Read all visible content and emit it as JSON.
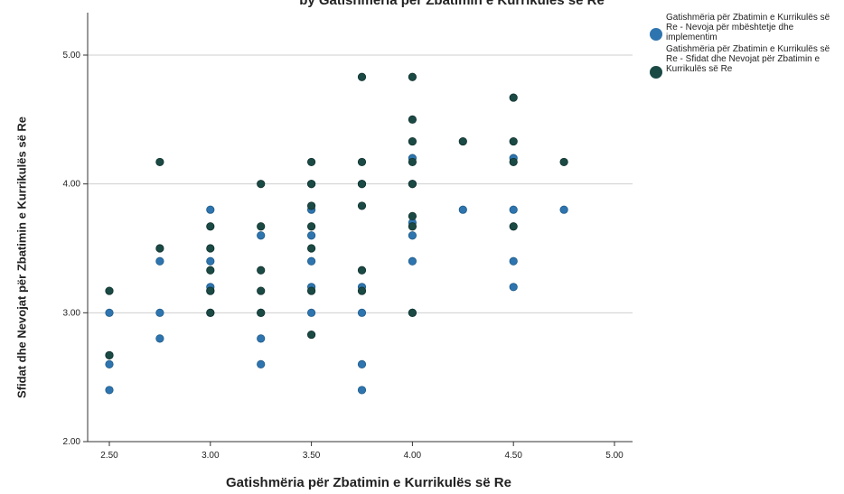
{
  "chart_data": {
    "type": "scatter",
    "title": "by Gatishmëria për Zbatimin e Kurrikulës së Re",
    "xlabel": "Gatishmëria për Zbatimin e Kurrikulës së Re",
    "ylabel": "Sfidat dhe Nevojat për Zbatimin e Kurrikulës së Re",
    "xlim": [
      2.5,
      5.0
    ],
    "ylim": [
      2.0,
      5.0
    ],
    "x_ticks": [
      "2.50",
      "3.00",
      "3.50",
      "4.00",
      "4.50",
      "5.00"
    ],
    "y_ticks": [
      "2.00",
      "3.00",
      "4.00",
      "5.00"
    ],
    "grid": "horizontal",
    "legend_position": "right",
    "series": [
      {
        "name": "Gatishmëria për Zbatimin e Kurrikulës së Re - Nevoja për mbështetje dhe implementim",
        "color": "#2e75b0",
        "x": [
          2.5,
          2.5,
          2.5,
          2.5,
          2.75,
          2.75,
          2.75,
          3.0,
          3.0,
          3.0,
          3.0,
          3.0,
          3.25,
          3.25,
          3.25,
          3.25,
          3.5,
          3.5,
          3.5,
          3.5,
          3.5,
          3.5,
          3.75,
          3.75,
          3.75,
          3.75,
          3.75,
          4.0,
          4.0,
          4.0,
          4.0,
          4.0,
          4.0,
          4.25,
          4.5,
          4.5,
          4.5,
          4.5,
          4.75
        ],
        "y": [
          3.0,
          2.6,
          2.4,
          2.67,
          3.4,
          3.0,
          2.8,
          3.8,
          3.4,
          3.2,
          3.0,
          3.17,
          3.6,
          3.0,
          2.8,
          2.6,
          4.0,
          3.8,
          3.6,
          3.4,
          3.0,
          3.2,
          3.2,
          3.0,
          2.6,
          2.4,
          4.0,
          4.2,
          4.0,
          3.6,
          3.4,
          3.0,
          3.7,
          3.8,
          4.2,
          3.8,
          3.4,
          3.2,
          3.8
        ]
      },
      {
        "name": "Gatishmëria për Zbatimin e Kurrikulës së Re - Sfidat dhe Nevojat për Zbatimin e Kurrikulës së Re",
        "color": "#1b4a45",
        "x": [
          2.5,
          2.5,
          2.75,
          2.75,
          3.0,
          3.0,
          3.0,
          3.0,
          3.0,
          3.25,
          3.25,
          3.25,
          3.25,
          3.25,
          3.5,
          3.5,
          3.5,
          3.5,
          3.5,
          3.5,
          3.5,
          3.75,
          3.75,
          3.75,
          3.75,
          3.75,
          3.75,
          4.0,
          4.0,
          4.0,
          4.0,
          4.0,
          4.0,
          4.0,
          4.0,
          4.25,
          4.5,
          4.5,
          4.5,
          4.5,
          4.75
        ],
        "y": [
          3.17,
          2.67,
          4.17,
          3.5,
          3.67,
          3.33,
          3.17,
          3.0,
          3.5,
          4.0,
          3.67,
          3.33,
          3.17,
          3.0,
          4.17,
          4.0,
          3.83,
          3.67,
          3.5,
          3.17,
          2.83,
          4.83,
          4.17,
          4.0,
          3.83,
          3.33,
          3.17,
          4.83,
          4.5,
          4.33,
          4.17,
          4.0,
          3.75,
          3.67,
          3.0,
          4.33,
          4.67,
          4.33,
          4.17,
          3.67,
          4.17
        ]
      }
    ]
  }
}
